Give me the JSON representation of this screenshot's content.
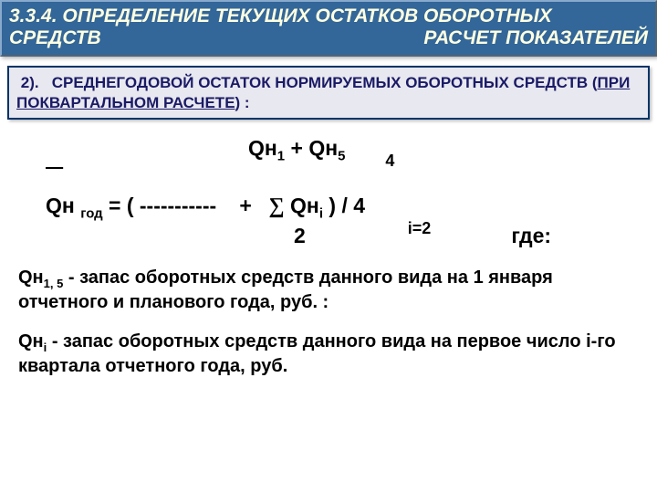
{
  "header": {
    "section_no": "3.3.4.",
    "title_l1": "ОПРЕДЕЛЕНИЕ ТЕКУЩИХ ОСТАТКОВ  ОБОРОТНЫХ",
    "title_l2a": "СРЕДСТВ",
    "title_l2b": "РАСЧЕТ ПОКАЗАТЕЛЕЙ"
  },
  "subheader": {
    "num": "2).",
    "text1": "СРЕДНЕГОДОВОЙ ОСТАТОК НОРМИРУЕМЫХ ОБОРОТНЫХ СРЕДСТВ (",
    "under": "ПРИ ПОКВАРТАЛЬНОМ РАСЧЕТЕ",
    "text2": ") :"
  },
  "formula": {
    "numerator": "Qн",
    "num_sub1": "1",
    "num_plus": " + Qн",
    "num_sub5": "5",
    "sum_top": "4",
    "lhs_bar": "   ",
    "lhs": "Qн ",
    "lhs_sub": "год",
    "eq": " =    (   ",
    "dashes": "-----------",
    "plus": "+",
    "sigma": "∑",
    "qni": " Qн",
    "qni_sub": "i",
    "close": "  )  / 4",
    "denom": "2",
    "sum_bot": "i=2",
    "gde": "где:"
  },
  "desc": {
    "p1_sym": "Qн",
    "p1_sub": "1, 5",
    "p1_txt": " - запас оборотных средств данного вида на 1 января отчетного и планового года, руб. :",
    "p2_sym": " Qн",
    "p2_sub": "i",
    "p2_txt": " - запас оборотных средств данного вида на первое число   i-го квартала отчетного года, руб."
  },
  "colors": {
    "header_bg": "#336699",
    "header_fg": "#ffffe0",
    "sub_border": "#003366",
    "sub_bg": "#e8e8f0",
    "sub_fg": "#1a1a66",
    "body_fg": "#000000",
    "page_bg": "#ffffff"
  }
}
